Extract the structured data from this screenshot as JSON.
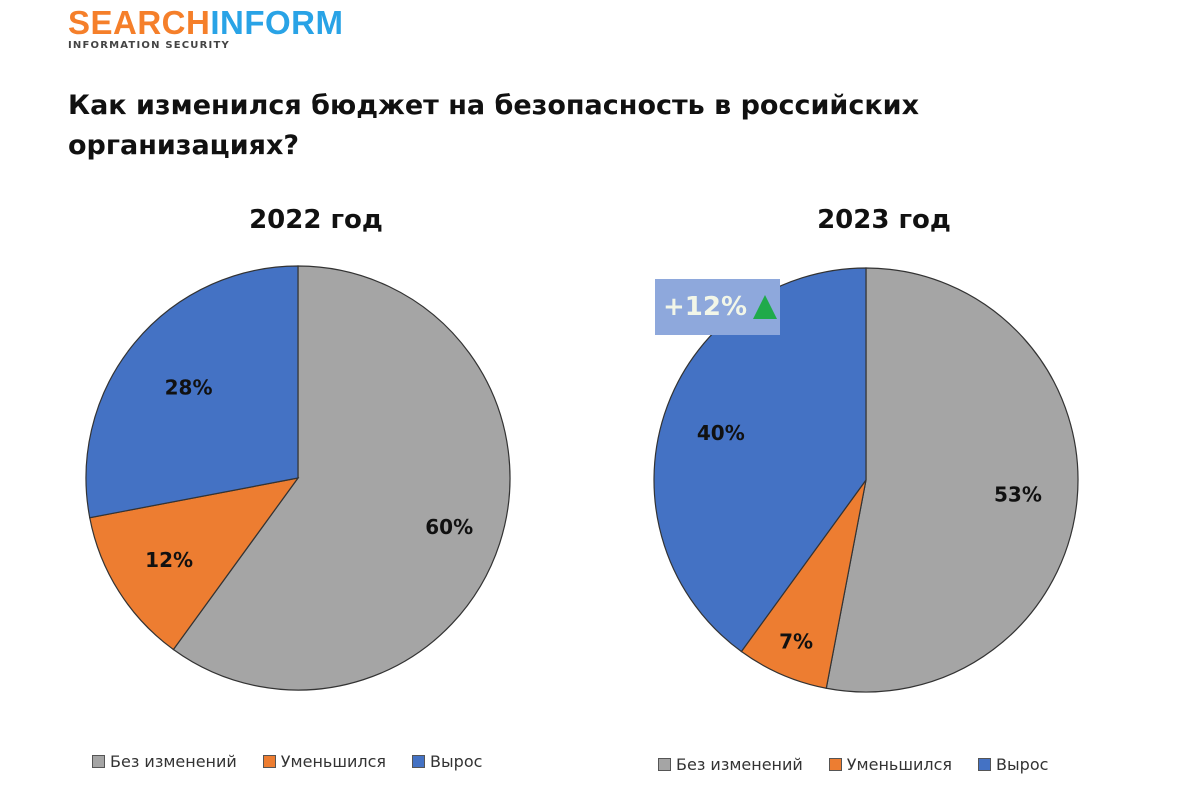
{
  "logo": {
    "part1": "SEARCH",
    "part2": "INFORM",
    "tagline": "INFORMATION SECURITY"
  },
  "title": "Как изменился бюджет на безопасность в российских организациях?",
  "colors": {
    "gray": "#a5a5a5",
    "orange": "#ed7d31",
    "blue": "#4472c4"
  },
  "chart_data": [
    {
      "type": "pie",
      "title": "2022 год",
      "categories": [
        "Без изменений",
        "Уменьшился",
        "Вырос"
      ],
      "values": [
        60,
        12,
        28
      ],
      "labels": [
        "60%",
        "12%",
        "28%"
      ]
    },
    {
      "type": "pie",
      "title": "2023 год",
      "categories": [
        "Без изменений",
        "Уменьшился",
        "Вырос"
      ],
      "values": [
        53,
        7,
        40
      ],
      "labels": [
        "53%",
        "7%",
        "40%"
      ],
      "annotation": "+12%"
    }
  ],
  "legend": [
    "Без изменений",
    "Уменьшился",
    "Вырос"
  ]
}
